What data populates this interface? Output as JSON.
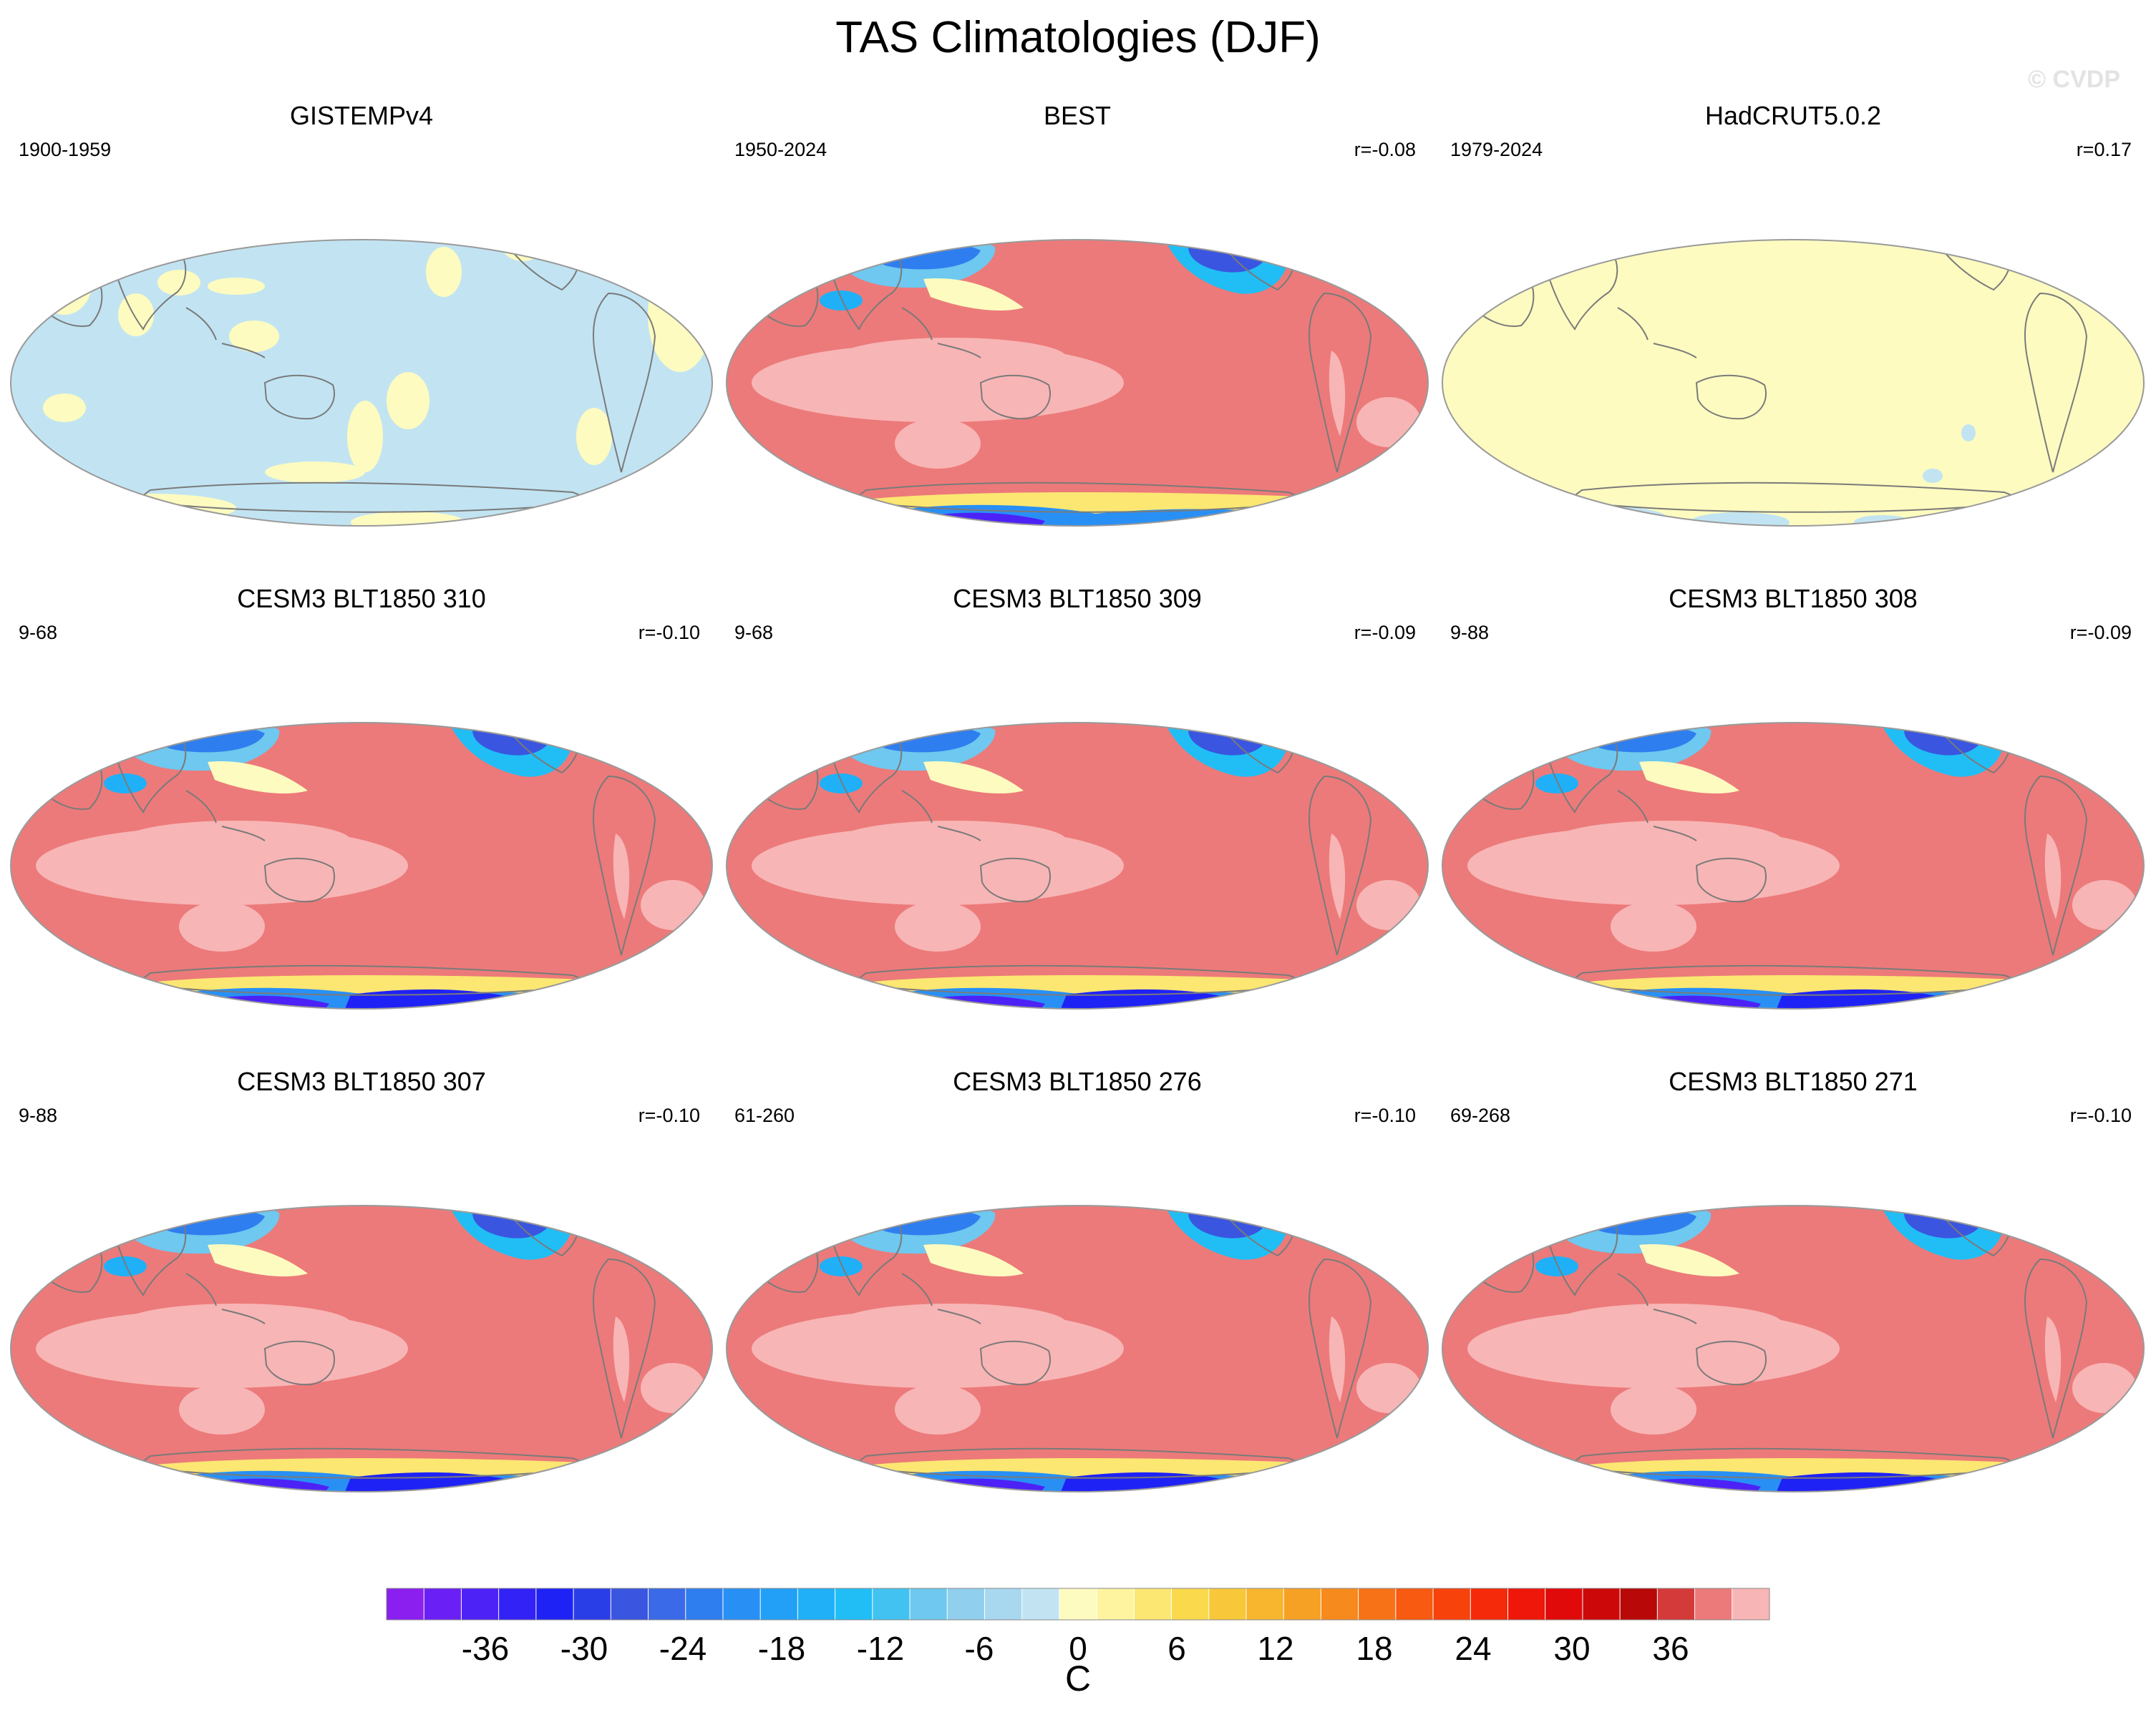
{
  "figure": {
    "title": "TAS Climatologies (DJF)",
    "watermark": "© CVDP",
    "panels": [
      {
        "title": "GISTEMPv4",
        "period": "1900-1959",
        "corr": "",
        "style": "anomaly_blue"
      },
      {
        "title": "BEST",
        "period": "1950-2024",
        "corr": "r=-0.08",
        "style": "obs_full"
      },
      {
        "title": "HadCRUT5.0.2",
        "period": "1979-2024",
        "corr": "r=0.17",
        "style": "anomaly_yellow"
      },
      {
        "title": "CESM3 BLT1850 310",
        "period": "9-68",
        "corr": "r=-0.10",
        "style": "model"
      },
      {
        "title": "CESM3 BLT1850 309",
        "period": "9-68",
        "corr": "r=-0.09",
        "style": "model"
      },
      {
        "title": "CESM3 BLT1850 308",
        "period": "9-88",
        "corr": "r=-0.09",
        "style": "model"
      },
      {
        "title": "CESM3 BLT1850 307",
        "period": "9-88",
        "corr": "r=-0.10",
        "style": "model"
      },
      {
        "title": "CESM3 BLT1850 276",
        "period": "61-260",
        "corr": "r=-0.10",
        "style": "model"
      },
      {
        "title": "CESM3 BLT1850 271",
        "period": "69-268",
        "corr": "r=-0.10",
        "style": "model"
      }
    ]
  },
  "colorbar": {
    "unit": "C",
    "tick_labels": [
      "-36",
      "-30",
      "-24",
      "-18",
      "-12",
      "-6",
      "0",
      "6",
      "12",
      "18",
      "24",
      "30",
      "36"
    ],
    "tick_values": [
      -36,
      -30,
      -24,
      -18,
      -12,
      -6,
      0,
      6,
      12,
      18,
      24,
      30,
      36
    ],
    "range": [
      -42,
      42
    ],
    "step": 2,
    "colors": [
      "#8b1ff0",
      "#6a1ff5",
      "#4d22f7",
      "#3322f5",
      "#1f22f5",
      "#2a3ee8",
      "#3a55e0",
      "#3a6ae8",
      "#2f7eef",
      "#2890f5",
      "#22a0f8",
      "#20b0f8",
      "#20bef5",
      "#42c2f0",
      "#6ec8ef",
      "#90d0ee",
      "#a8d8f0",
      "#c2e4f2",
      "#fdfbc0",
      "#fef4a0",
      "#fbe772",
      "#fad94c",
      "#f9c83a",
      "#f8b52e",
      "#f7a124",
      "#f78a1c",
      "#f77216",
      "#f75a10",
      "#f7420c",
      "#f52a0a",
      "#ee170a",
      "#e00a0a",
      "#cd0808",
      "#b80808",
      "#d43a3a",
      "#ec7a7a",
      "#f8b5b5"
    ]
  }
}
